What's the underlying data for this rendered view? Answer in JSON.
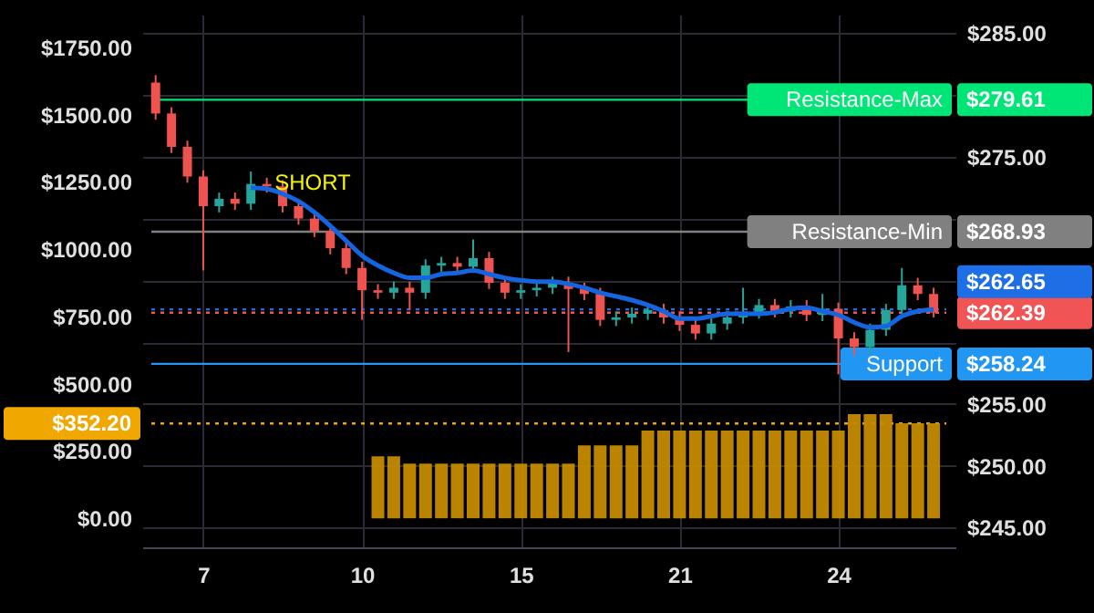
{
  "chart_data": {
    "type": "candlestick",
    "categories": [
      null,
      null,
      null,
      "7",
      null,
      null,
      null,
      null,
      null,
      null,
      null,
      null,
      null,
      "10",
      null,
      null,
      null,
      null,
      null,
      null,
      null,
      null,
      null,
      "15",
      null,
      null,
      null,
      null,
      null,
      null,
      null,
      null,
      null,
      "21",
      null,
      null,
      null,
      null,
      null,
      null,
      null,
      null,
      null,
      "24",
      null,
      null,
      null,
      null,
      null,
      null
    ],
    "series": [
      {
        "axis": "y2",
        "ohlc": [
          [
            281.0,
            281.6,
            278.0,
            278.5
          ],
          [
            278.5,
            279.0,
            275.3,
            275.8
          ],
          [
            275.8,
            276.3,
            272.9,
            273.4
          ],
          [
            273.4,
            273.9,
            265.8,
            271.0
          ],
          [
            271.0,
            272.1,
            270.5,
            271.6
          ],
          [
            271.6,
            272.1,
            270.7,
            271.2
          ],
          [
            271.2,
            273.8,
            270.7,
            272.8
          ],
          [
            272.8,
            273.3,
            272.1,
            272.6
          ],
          [
            272.6,
            273.1,
            270.5,
            271.0
          ],
          [
            271.0,
            271.5,
            269.5,
            270.0
          ],
          [
            270.0,
            270.5,
            268.5,
            269.0
          ],
          [
            269.0,
            269.5,
            267.1,
            267.6
          ],
          [
            267.6,
            268.1,
            265.5,
            266.0
          ],
          [
            266.0,
            266.5,
            261.8,
            264.2
          ],
          [
            264.2,
            264.7,
            263.5,
            264.0
          ],
          [
            264.0,
            264.9,
            263.5,
            264.4
          ],
          [
            264.4,
            264.9,
            262.6,
            264.0
          ],
          [
            264.0,
            266.7,
            263.5,
            266.2
          ],
          [
            266.2,
            266.9,
            265.7,
            266.4
          ],
          [
            266.4,
            266.9,
            265.6,
            266.1
          ],
          [
            266.1,
            268.3,
            265.6,
            266.8
          ],
          [
            266.8,
            267.3,
            264.3,
            264.8
          ],
          [
            264.8,
            265.3,
            263.5,
            264.0
          ],
          [
            264.0,
            264.7,
            263.5,
            264.2
          ],
          [
            264.2,
            264.9,
            263.7,
            264.4
          ],
          [
            264.4,
            265.3,
            263.9,
            264.8
          ],
          [
            264.8,
            265.3,
            259.2,
            264.3
          ],
          [
            264.3,
            264.8,
            263.4,
            263.9
          ],
          [
            263.9,
            264.4,
            261.3,
            261.8
          ],
          [
            261.8,
            262.5,
            261.3,
            262.0
          ],
          [
            262.0,
            262.8,
            261.5,
            262.3
          ],
          [
            262.3,
            263.1,
            261.8,
            262.6
          ],
          [
            262.6,
            263.1,
            261.5,
            262.0
          ],
          [
            262.0,
            262.5,
            260.9,
            261.4
          ],
          [
            261.4,
            261.9,
            260.2,
            260.7
          ],
          [
            260.7,
            262.0,
            260.2,
            261.5
          ],
          [
            261.5,
            262.5,
            261.0,
            262.0
          ],
          [
            262.0,
            264.4,
            261.5,
            262.4
          ],
          [
            262.4,
            263.5,
            261.9,
            263.0
          ],
          [
            263.0,
            263.5,
            262.0,
            262.5
          ],
          [
            262.5,
            263.4,
            262.0,
            262.9
          ],
          [
            262.9,
            263.4,
            261.7,
            262.2
          ],
          [
            262.2,
            263.9,
            261.7,
            262.7
          ],
          [
            262.7,
            263.2,
            257.4,
            260.3
          ],
          [
            260.3,
            260.8,
            258.9,
            259.6
          ],
          [
            259.6,
            261.5,
            259.1,
            261.0
          ],
          [
            261.0,
            263.1,
            260.5,
            262.6
          ],
          [
            262.6,
            266.0,
            262.1,
            264.6
          ],
          [
            264.6,
            265.2,
            263.4,
            263.9
          ],
          [
            263.9,
            264.4,
            262.0,
            262.39
          ]
        ],
        "colors": [
          "#ef5350",
          "#ef5350",
          "#ef5350",
          "#ef5350",
          "#26a69a",
          "#ef5350",
          "#26a69a",
          "#ef5350",
          "#ef5350",
          "#ef5350",
          "#ef5350",
          "#ef5350",
          "#ef5350",
          "#ef5350",
          "#ef5350",
          "#26a69a",
          "#ef5350",
          "#26a69a",
          "#26a69a",
          "#ef5350",
          "#26a69a",
          "#ef5350",
          "#ef5350",
          "#26a69a",
          "#26a69a",
          "#26a69a",
          "#ef5350",
          "#ef5350",
          "#ef5350",
          "#26a69a",
          "#26a69a",
          "#26a69a",
          "#ef5350",
          "#ef5350",
          "#ef5350",
          "#26a69a",
          "#26a69a",
          "#26a69a",
          "#26a69a",
          "#ef5350",
          "#26a69a",
          "#ef5350",
          "#26a69a",
          "#ef5350",
          "#ef5350",
          "#26a69a",
          "#26a69a",
          "#26a69a",
          "#ef5350",
          "#ef5350"
        ]
      },
      {
        "type": "line",
        "axis": "y2",
        "color": "#1565e0",
        "values": [
          null,
          null,
          null,
          null,
          null,
          null,
          272.5,
          272.4,
          272.0,
          271.4,
          270.5,
          269.4,
          268.2,
          267.0,
          266.2,
          265.6,
          265.2,
          265.2,
          265.5,
          265.6,
          265.8,
          265.5,
          265.2,
          265.0,
          264.9,
          264.9,
          264.7,
          264.4,
          264.0,
          263.7,
          263.4,
          263.0,
          262.5,
          261.9,
          261.9,
          262.1,
          262.3,
          262.3,
          262.3,
          262.4,
          262.7,
          262.8,
          262.5,
          262.2,
          261.6,
          261.2,
          261.3,
          262.1,
          262.5,
          262.65
        ]
      },
      {
        "type": "bar",
        "axis": "y",
        "color": "#c48a00",
        "values": [
          null,
          null,
          null,
          null,
          null,
          null,
          null,
          null,
          null,
          null,
          null,
          null,
          null,
          null,
          230,
          230,
          203,
          203,
          203,
          203,
          203,
          203,
          203,
          203,
          203,
          203,
          203,
          271,
          271,
          271,
          271,
          326,
          326,
          326,
          326,
          326,
          326,
          326,
          326,
          326,
          326,
          326,
          326,
          326,
          387,
          387,
          387,
          353,
          353,
          353
        ]
      }
    ],
    "ylim": [
      -108,
      1872
    ],
    "yticks": [
      {
        "value": 0,
        "label": "$0.00"
      },
      {
        "value": 250,
        "label": "$250.00"
      },
      {
        "value": 352.2,
        "label": "$352.20"
      },
      {
        "value": 500,
        "label": "$500.00"
      },
      {
        "value": 750,
        "label": "$750.00"
      },
      {
        "value": 1000,
        "label": "$1000.00"
      },
      {
        "value": 1250,
        "label": "$1250.00"
      },
      {
        "value": 1500,
        "label": "$1500.00"
      },
      {
        "value": 1750,
        "label": "$1750.00"
      }
    ],
    "y2lim": [
      243.4,
      286.5
    ],
    "y2ticks": [
      {
        "value": 245,
        "label": "$245.00"
      },
      {
        "value": 250,
        "label": "$250.00"
      },
      {
        "value": 255,
        "label": "$255.00"
      },
      {
        "value": 258.24,
        "label": "$258.24"
      },
      {
        "value": 260,
        "label": null
      },
      {
        "value": 262.39,
        "label": "$262.39"
      },
      {
        "value": 265,
        "label": null
      },
      {
        "value": 268.93,
        "label": "$268.93"
      },
      {
        "value": 270,
        "label": null
      },
      {
        "value": 275,
        "label": "$275.00"
      },
      {
        "value": 279.61,
        "label": "$279.61"
      },
      {
        "value": 280,
        "label": null
      },
      {
        "value": 285,
        "label": "$285.00"
      }
    ],
    "ref_lines": [
      {
        "axis": "y2",
        "value": 279.61,
        "label": "Resistance-Max",
        "color": "#00e676",
        "line_style": "solid"
      },
      {
        "axis": "y2",
        "value": 268.93,
        "label": "Resistance-Min",
        "color": "#808080",
        "line_style": "solid"
      },
      {
        "axis": "y2",
        "value": 262.65,
        "label": null,
        "color": "#1e6fe6",
        "line_style": "dotted"
      },
      {
        "axis": "y2",
        "value": 262.39,
        "label": null,
        "color": "#f05454",
        "line_style": "dotted"
      },
      {
        "axis": "y2",
        "value": 258.24,
        "label": "Support",
        "color": "#2196f3",
        "line_style": "solid"
      },
      {
        "axis": "y",
        "value": 352.2,
        "label": null,
        "color": "#f0a800",
        "line_style": "dotted"
      }
    ],
    "annotations": [
      "SHORT",
      "$262.65"
    ],
    "grid": true
  }
}
